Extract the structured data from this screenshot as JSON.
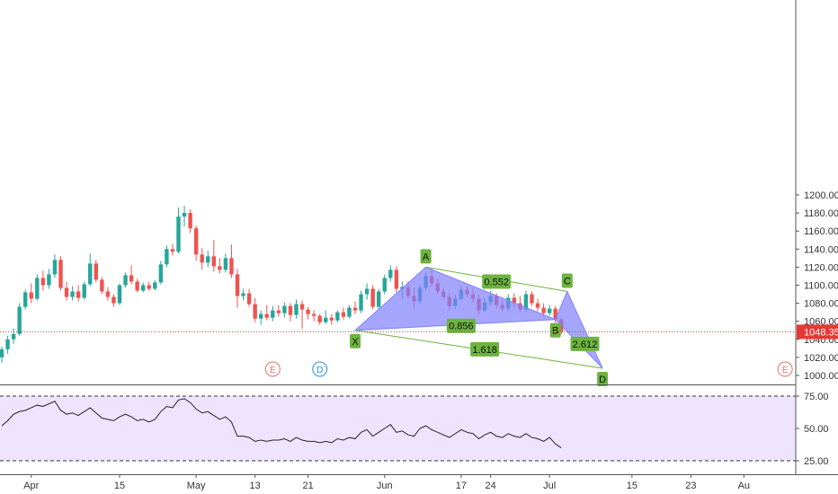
{
  "colors": {
    "up": "#26a69a",
    "down": "#ef5350",
    "pattern_fill": "#8080ff",
    "pattern_line": "#6cb33f",
    "label_fill": "#6cb33f",
    "current_price": "#e53935",
    "rsi_line": "#222222",
    "rsi_band": "#efe4ff",
    "earnings": "#e57373",
    "dividend": "#2196f3"
  },
  "chart_data": {
    "type": "candlestick",
    "price_axis": {
      "ylim": [
        990,
        1210
      ],
      "ticks": [
        "1000.00",
        "1020.00",
        "1040.00",
        "1060.00",
        "1080.00",
        "1100.00",
        "1120.00",
        "1140.00",
        "1160.00",
        "1180.00",
        "1200.00"
      ]
    },
    "time_axis": {
      "ticks": [
        {
          "label": "Apr",
          "bar": 5
        },
        {
          "label": "15",
          "bar": 20
        },
        {
          "label": "May",
          "bar": 33
        },
        {
          "label": "13",
          "bar": 43
        },
        {
          "label": "21",
          "bar": 52
        },
        {
          "label": "Jun",
          "bar": 65
        },
        {
          "label": "17",
          "bar": 78
        },
        {
          "label": "24",
          "bar": 83
        },
        {
          "label": "Jul",
          "bar": 93
        },
        {
          "label": "15",
          "bar": 107
        },
        {
          "label": "23",
          "bar": 117
        },
        {
          "label": "Au",
          "bar": 126
        }
      ]
    },
    "current_price": {
      "value": 1048.35,
      "label": "1048.35"
    },
    "candles": [
      {
        "o": 1020,
        "h": 1032,
        "l": 1014,
        "c": 1029
      },
      {
        "o": 1029,
        "h": 1044,
        "l": 1024,
        "c": 1040
      },
      {
        "o": 1040,
        "h": 1052,
        "l": 1035,
        "c": 1046
      },
      {
        "o": 1046,
        "h": 1080,
        "l": 1044,
        "c": 1076
      },
      {
        "o": 1076,
        "h": 1095,
        "l": 1073,
        "c": 1092
      },
      {
        "o": 1092,
        "h": 1102,
        "l": 1080,
        "c": 1085
      },
      {
        "o": 1085,
        "h": 1112,
        "l": 1083,
        "c": 1108
      },
      {
        "o": 1108,
        "h": 1116,
        "l": 1094,
        "c": 1100
      },
      {
        "o": 1100,
        "h": 1118,
        "l": 1096,
        "c": 1112
      },
      {
        "o": 1112,
        "h": 1134,
        "l": 1108,
        "c": 1128
      },
      {
        "o": 1128,
        "h": 1132,
        "l": 1094,
        "c": 1097
      },
      {
        "o": 1097,
        "h": 1104,
        "l": 1083,
        "c": 1087
      },
      {
        "o": 1087,
        "h": 1099,
        "l": 1083,
        "c": 1093
      },
      {
        "o": 1093,
        "h": 1100,
        "l": 1082,
        "c": 1086
      },
      {
        "o": 1086,
        "h": 1104,
        "l": 1084,
        "c": 1101
      },
      {
        "o": 1101,
        "h": 1135,
        "l": 1099,
        "c": 1124
      },
      {
        "o": 1124,
        "h": 1128,
        "l": 1103,
        "c": 1106
      },
      {
        "o": 1106,
        "h": 1109,
        "l": 1090,
        "c": 1093
      },
      {
        "o": 1093,
        "h": 1098,
        "l": 1083,
        "c": 1087
      },
      {
        "o": 1087,
        "h": 1090,
        "l": 1076,
        "c": 1080
      },
      {
        "o": 1080,
        "h": 1102,
        "l": 1078,
        "c": 1100
      },
      {
        "o": 1100,
        "h": 1114,
        "l": 1097,
        "c": 1111
      },
      {
        "o": 1111,
        "h": 1122,
        "l": 1101,
        "c": 1104
      },
      {
        "o": 1104,
        "h": 1107,
        "l": 1092,
        "c": 1094
      },
      {
        "o": 1094,
        "h": 1103,
        "l": 1092,
        "c": 1100
      },
      {
        "o": 1100,
        "h": 1104,
        "l": 1094,
        "c": 1096
      },
      {
        "o": 1096,
        "h": 1106,
        "l": 1094,
        "c": 1103
      },
      {
        "o": 1103,
        "h": 1127,
        "l": 1101,
        "c": 1123
      },
      {
        "o": 1123,
        "h": 1144,
        "l": 1120,
        "c": 1140
      },
      {
        "o": 1140,
        "h": 1146,
        "l": 1133,
        "c": 1137
      },
      {
        "o": 1137,
        "h": 1186,
        "l": 1135,
        "c": 1176
      },
      {
        "o": 1176,
        "h": 1188,
        "l": 1165,
        "c": 1180
      },
      {
        "o": 1180,
        "h": 1184,
        "l": 1158,
        "c": 1163
      },
      {
        "o": 1163,
        "h": 1166,
        "l": 1127,
        "c": 1134
      },
      {
        "o": 1134,
        "h": 1141,
        "l": 1117,
        "c": 1125
      },
      {
        "o": 1125,
        "h": 1138,
        "l": 1120,
        "c": 1132
      },
      {
        "o": 1132,
        "h": 1150,
        "l": 1115,
        "c": 1121
      },
      {
        "o": 1121,
        "h": 1130,
        "l": 1113,
        "c": 1117
      },
      {
        "o": 1117,
        "h": 1135,
        "l": 1114,
        "c": 1130
      },
      {
        "o": 1130,
        "h": 1145,
        "l": 1108,
        "c": 1112
      },
      {
        "o": 1112,
        "h": 1118,
        "l": 1075,
        "c": 1088
      },
      {
        "o": 1088,
        "h": 1096,
        "l": 1083,
        "c": 1091
      },
      {
        "o": 1091,
        "h": 1096,
        "l": 1076,
        "c": 1079
      },
      {
        "o": 1079,
        "h": 1086,
        "l": 1059,
        "c": 1063
      },
      {
        "o": 1063,
        "h": 1072,
        "l": 1056,
        "c": 1068
      },
      {
        "o": 1068,
        "h": 1078,
        "l": 1061,
        "c": 1064
      },
      {
        "o": 1064,
        "h": 1077,
        "l": 1060,
        "c": 1072
      },
      {
        "o": 1072,
        "h": 1078,
        "l": 1065,
        "c": 1069
      },
      {
        "o": 1069,
        "h": 1081,
        "l": 1064,
        "c": 1077
      },
      {
        "o": 1077,
        "h": 1080,
        "l": 1060,
        "c": 1067
      },
      {
        "o": 1067,
        "h": 1084,
        "l": 1063,
        "c": 1079
      },
      {
        "o": 1079,
        "h": 1083,
        "l": 1052,
        "c": 1073
      },
      {
        "o": 1073,
        "h": 1076,
        "l": 1062,
        "c": 1068
      },
      {
        "o": 1068,
        "h": 1072,
        "l": 1060,
        "c": 1066
      },
      {
        "o": 1066,
        "h": 1068,
        "l": 1056,
        "c": 1059
      },
      {
        "o": 1059,
        "h": 1072,
        "l": 1057,
        "c": 1064
      },
      {
        "o": 1064,
        "h": 1068,
        "l": 1056,
        "c": 1061
      },
      {
        "o": 1061,
        "h": 1072,
        "l": 1059,
        "c": 1070
      },
      {
        "o": 1070,
        "h": 1075,
        "l": 1062,
        "c": 1065
      },
      {
        "o": 1065,
        "h": 1078,
        "l": 1063,
        "c": 1075
      },
      {
        "o": 1075,
        "h": 1082,
        "l": 1068,
        "c": 1072
      },
      {
        "o": 1072,
        "h": 1094,
        "l": 1069,
        "c": 1090
      },
      {
        "o": 1090,
        "h": 1102,
        "l": 1084,
        "c": 1096
      },
      {
        "o": 1096,
        "h": 1100,
        "l": 1073,
        "c": 1076
      },
      {
        "o": 1076,
        "h": 1096,
        "l": 1074,
        "c": 1093
      },
      {
        "o": 1093,
        "h": 1112,
        "l": 1090,
        "c": 1108
      },
      {
        "o": 1108,
        "h": 1122,
        "l": 1104,
        "c": 1117
      },
      {
        "o": 1117,
        "h": 1121,
        "l": 1092,
        "c": 1096
      },
      {
        "o": 1096,
        "h": 1104,
        "l": 1084,
        "c": 1098
      },
      {
        "o": 1098,
        "h": 1104,
        "l": 1085,
        "c": 1088
      },
      {
        "o": 1088,
        "h": 1097,
        "l": 1074,
        "c": 1082
      },
      {
        "o": 1082,
        "h": 1101,
        "l": 1079,
        "c": 1097
      },
      {
        "o": 1097,
        "h": 1114,
        "l": 1094,
        "c": 1110
      },
      {
        "o": 1110,
        "h": 1118,
        "l": 1098,
        "c": 1102
      },
      {
        "o": 1102,
        "h": 1108,
        "l": 1090,
        "c": 1093
      },
      {
        "o": 1093,
        "h": 1097,
        "l": 1084,
        "c": 1087
      },
      {
        "o": 1087,
        "h": 1091,
        "l": 1072,
        "c": 1077
      },
      {
        "o": 1077,
        "h": 1090,
        "l": 1074,
        "c": 1085
      },
      {
        "o": 1085,
        "h": 1099,
        "l": 1083,
        "c": 1095
      },
      {
        "o": 1095,
        "h": 1099,
        "l": 1086,
        "c": 1090
      },
      {
        "o": 1090,
        "h": 1097,
        "l": 1081,
        "c": 1085
      },
      {
        "o": 1085,
        "h": 1090,
        "l": 1068,
        "c": 1072
      },
      {
        "o": 1072,
        "h": 1086,
        "l": 1070,
        "c": 1081
      },
      {
        "o": 1081,
        "h": 1094,
        "l": 1077,
        "c": 1088
      },
      {
        "o": 1088,
        "h": 1091,
        "l": 1074,
        "c": 1078
      },
      {
        "o": 1078,
        "h": 1084,
        "l": 1071,
        "c": 1074
      },
      {
        "o": 1074,
        "h": 1090,
        "l": 1071,
        "c": 1086
      },
      {
        "o": 1086,
        "h": 1091,
        "l": 1075,
        "c": 1080
      },
      {
        "o": 1080,
        "h": 1088,
        "l": 1070,
        "c": 1073
      },
      {
        "o": 1073,
        "h": 1094,
        "l": 1070,
        "c": 1090
      },
      {
        "o": 1090,
        "h": 1093,
        "l": 1077,
        "c": 1080
      },
      {
        "o": 1080,
        "h": 1085,
        "l": 1071,
        "c": 1075
      },
      {
        "o": 1075,
        "h": 1080,
        "l": 1065,
        "c": 1069
      },
      {
        "o": 1069,
        "h": 1078,
        "l": 1066,
        "c": 1074
      },
      {
        "o": 1074,
        "h": 1077,
        "l": 1058,
        "c": 1062
      },
      {
        "o": 1062,
        "h": 1064,
        "l": 1046,
        "c": 1048
      }
    ],
    "rsi": {
      "ylim": [
        20,
        80
      ],
      "ticks": [
        "25.00",
        "50.00",
        "75.00"
      ],
      "levels": [
        25,
        75
      ],
      "values": [
        52,
        56,
        61,
        63,
        64,
        66,
        68,
        67,
        69,
        71,
        64,
        61,
        62,
        60,
        63,
        66,
        62,
        58,
        57,
        56,
        59,
        61,
        59,
        56,
        57,
        55,
        57,
        63,
        67,
        66,
        72,
        73,
        70,
        65,
        62,
        63,
        60,
        57,
        59,
        55,
        44,
        44,
        43,
        40,
        41,
        40,
        41,
        41,
        42,
        40,
        43,
        41,
        40,
        40,
        39,
        40,
        39,
        42,
        41,
        43,
        42,
        47,
        49,
        44,
        47,
        50,
        53,
        47,
        48,
        45,
        44,
        50,
        52,
        49,
        47,
        45,
        43,
        46,
        49,
        47,
        46,
        42,
        45,
        47,
        44,
        43,
        46,
        44,
        43,
        46,
        43,
        42,
        40,
        43,
        38,
        35
      ]
    },
    "harmonic_pattern": {
      "points": [
        {
          "label": "X",
          "bar": 60,
          "price": 1050
        },
        {
          "label": "A",
          "bar": 72,
          "price": 1120
        },
        {
          "label": "B",
          "bar": 94,
          "price": 1062
        },
        {
          "label": "C",
          "bar": 96,
          "price": 1093
        },
        {
          "label": "D",
          "bar": 102,
          "price": 1008
        }
      ],
      "ratios": [
        {
          "label": "0.552",
          "bar": 84,
          "price": 1104
        },
        {
          "label": "0.856",
          "bar": 78,
          "price": 1055
        },
        {
          "label": "2.612",
          "bar": 99,
          "price": 1035
        },
        {
          "label": "1.618",
          "bar": 82,
          "price": 1029
        }
      ]
    },
    "events": [
      {
        "label": "E",
        "bar": 46,
        "type": "earnings"
      },
      {
        "label": "D",
        "bar": 54,
        "type": "dividend"
      },
      {
        "label": "E",
        "bar": 133,
        "type": "earnings"
      }
    ]
  }
}
